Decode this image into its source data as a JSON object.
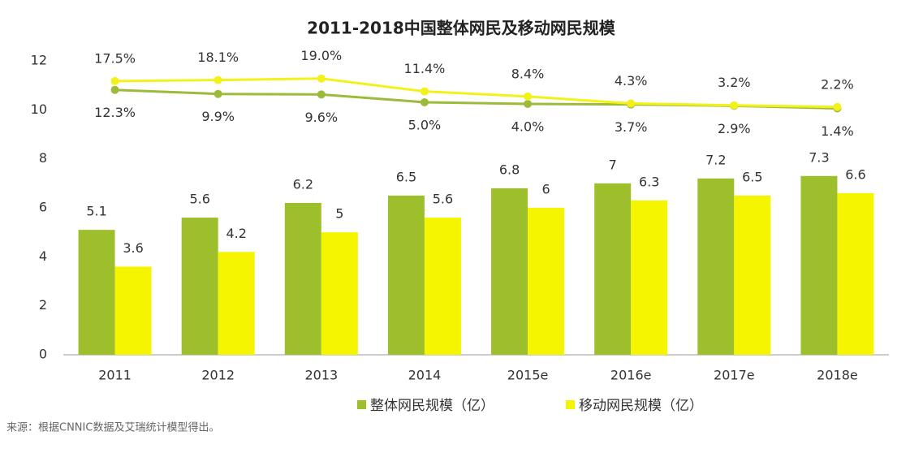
{
  "chart_data": {
    "type": "bar",
    "title": "2011-2018中国整体网民及移动网民规模",
    "categories": [
      "2011",
      "2012",
      "2013",
      "2014",
      "2015e",
      "2016e",
      "2017e",
      "2018e"
    ],
    "series": [
      {
        "name": "整体网民规模（亿）",
        "color": "#9dbf2c",
        "values": [
          5.1,
          5.6,
          6.2,
          6.5,
          6.8,
          7.0,
          7.2,
          7.3
        ]
      },
      {
        "name": "移动网民规模（亿）",
        "color": "#f6f500",
        "values": [
          3.6,
          4.2,
          5.0,
          5.6,
          6.0,
          6.3,
          6.5,
          6.6
        ]
      },
      {
        "type": "line",
        "axis": "y2",
        "color": "#9dbb3a",
        "values": [
          12.3,
          9.9,
          9.6,
          5.0,
          4.0,
          3.7,
          2.9,
          1.4
        ],
        "value_labels": [
          "12.3%",
          "9.9%",
          "9.6%",
          "5.0%",
          "4.0%",
          "3.7%",
          "2.9%",
          "1.4%"
        ]
      },
      {
        "type": "line",
        "axis": "y2",
        "color": "#f2f21a",
        "values": [
          17.5,
          18.1,
          19.0,
          11.4,
          8.4,
          4.3,
          3.2,
          2.2
        ],
        "value_labels": [
          "17.5%",
          "18.1%",
          "19.0%",
          "11.4%",
          "8.4%",
          "4.3%",
          "3.2%",
          "2.2%"
        ]
      }
    ],
    "ylim": [
      0,
      12
    ],
    "yticks": [
      0,
      2,
      4,
      6,
      8,
      10,
      12
    ],
    "y2lim": [
      -144,
      29.4
    ],
    "source": "来源：根据CNNIC数据及艾瑞统计模型得出。"
  }
}
